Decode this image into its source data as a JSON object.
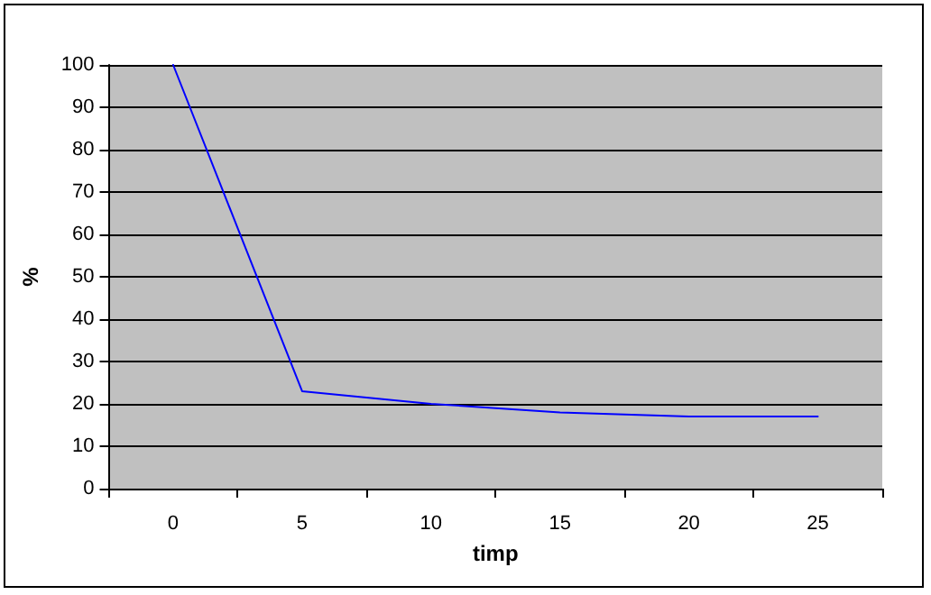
{
  "chart_data": {
    "type": "line",
    "xlabel": "timp",
    "ylabel": "%",
    "categories": [
      "0",
      "5",
      "10",
      "15",
      "20",
      "25"
    ],
    "series": [
      {
        "color": "#0000ff",
        "values": [
          100,
          23,
          20,
          18,
          17,
          17
        ]
      }
    ],
    "ylim": [
      0,
      100
    ],
    "yticks": [
      0,
      10,
      20,
      30,
      40,
      50,
      60,
      70,
      80,
      90,
      100
    ],
    "grid": "y",
    "marker": "none",
    "line_style": "solid"
  }
}
